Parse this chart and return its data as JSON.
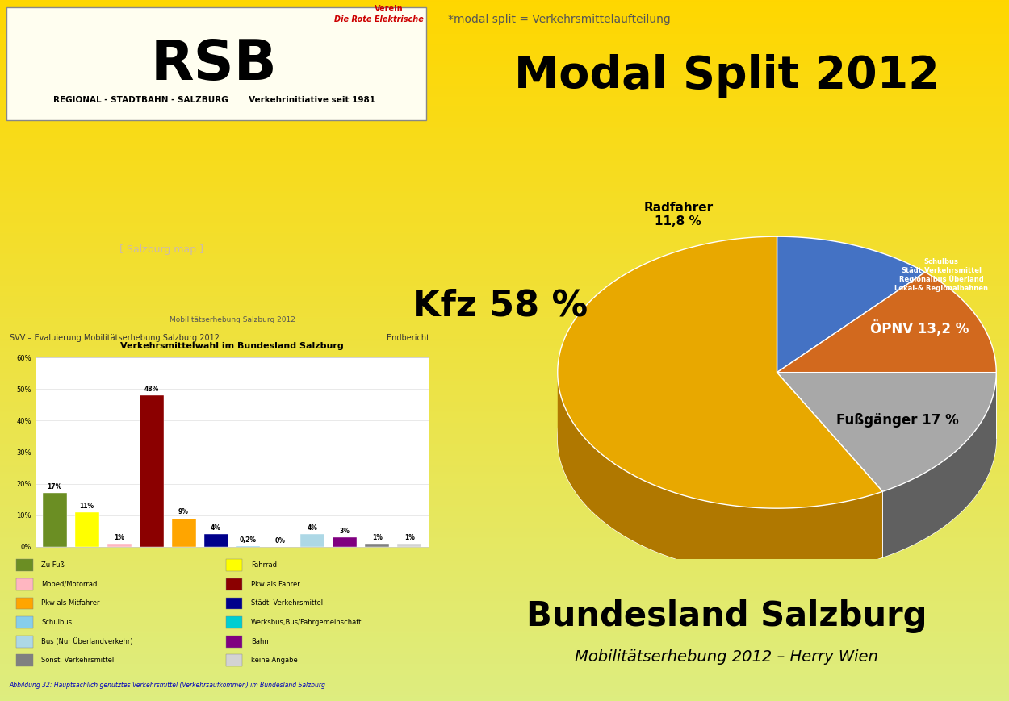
{
  "title_main": "Modal Split 2012",
  "subtitle": "*modal split = Verkehrsmittelaufteilung",
  "footer_title": "Bundesland Salzburg",
  "footer_sub": "Mobilitätserhebung 2012 – Herry Wien",
  "pie_slices": [
    58.0,
    17.0,
    13.2,
    11.8
  ],
  "pie_colors": [
    "#E8A800",
    "#A8A8A8",
    "#D2691E",
    "#4472C4"
  ],
  "pie_dark_colors": [
    "#B07800",
    "#606060",
    "#8B3A0F",
    "#1A4290"
  ],
  "pie_labels": [
    "Kfz 58 %",
    "Fußgänger 17 %",
    "ÖPNV 13,2 %",
    "Radfahrer\n11,8 %"
  ],
  "opnv_sub_label": "Schulbus\nStädt.Verkehrsmittel\nRegionalbus Überland\nLokal-& Regionalbahnen",
  "bar_values": [
    17,
    11,
    1,
    48,
    9,
    4,
    0.2,
    0,
    4,
    3,
    1,
    1
  ],
  "bar_colors_list": [
    "#6B8E23",
    "#FFFF00",
    "#FFB6C1",
    "#8B0000",
    "#FFA500",
    "#00008B",
    "#87CEEB",
    "#00CED1",
    "#ADD8E6",
    "#800080",
    "#808080",
    "#D3D3D3"
  ],
  "bar_labels": [
    "17%",
    "11%",
    "1%",
    "48%",
    "9%",
    "4%",
    "0,2%",
    "0%",
    "4%",
    "3%",
    "1%",
    "1%"
  ],
  "bar_chart_title": "Mobilitätserhebung Salzburg 2012",
  "bar_chart_subtitle": "Verkehrsmittelwahl im Bundesland Salzburg",
  "bar_header": "SVV – Evaluierung Mobilitätserhebung Salzburg 2012",
  "bar_footer": "Abbildung 32: Hauptsächlich genutztes Verkehrsmittel (Verkehrsaufkommen) im Bundesland Salzburg",
  "legend_left": [
    "Zu Fuß",
    "Moped/Motorrad",
    "Pkw als Mitfahrer",
    "Schulbus",
    "Bus (Nur Überlandverkehr)",
    "Sonst. Verkehrsmittel"
  ],
  "legend_left_colors": [
    "#6B8E23",
    "#FFB6C1",
    "#FFA500",
    "#87CEEB",
    "#ADD8E6",
    "#808080"
  ],
  "legend_right": [
    "Fahrrad",
    "Pkw als Fahrer",
    "Städt. Verkehrsmittel",
    "Werksbus,Bus/Fahrgemeinschaft",
    "Bahn",
    "keine Angabe"
  ],
  "legend_right_colors": [
    "#FFFF00",
    "#8B0000",
    "#00008B",
    "#00CED1",
    "#800080",
    "#D3D3D3"
  ]
}
